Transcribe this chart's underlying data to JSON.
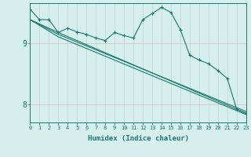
{
  "xlabel": "Humidex (Indice chaleur)",
  "bg_color": "#d6efed",
  "line_color": "#1a7870",
  "grid_color_x": "#b8d8d5",
  "grid_color_y": "#e0b8b8",
  "xlim": [
    0,
    23
  ],
  "ylim": [
    7.7,
    9.65
  ],
  "xticks": [
    0,
    1,
    2,
    3,
    4,
    5,
    6,
    7,
    8,
    9,
    10,
    11,
    12,
    13,
    14,
    15,
    16,
    17,
    18,
    19,
    20,
    21,
    22,
    23
  ],
  "yticks": [
    8,
    9
  ],
  "figsize": [
    3.2,
    2.0
  ],
  "dpi": 100,
  "series": [
    {
      "x": [
        0,
        1,
        2,
        3,
        4,
        5,
        6,
        7,
        8,
        9,
        10,
        11,
        12,
        13,
        14,
        15,
        16,
        17,
        18,
        19,
        20,
        21,
        22,
        23
      ],
      "y": [
        9.55,
        9.38,
        9.38,
        9.17,
        9.24,
        9.18,
        9.14,
        9.08,
        9.04,
        9.17,
        9.12,
        9.08,
        9.38,
        9.48,
        9.58,
        9.5,
        9.22,
        8.8,
        8.72,
        8.66,
        8.55,
        8.42,
        7.92,
        7.85
      ]
    },
    {
      "x": [
        0,
        3,
        23
      ],
      "y": [
        9.38,
        9.17,
        7.85
      ]
    },
    {
      "x": [
        0,
        3,
        23
      ],
      "y": [
        9.38,
        9.14,
        7.88
      ]
    },
    {
      "x": [
        0,
        3,
        23
      ],
      "y": [
        9.38,
        9.1,
        7.83
      ]
    }
  ]
}
